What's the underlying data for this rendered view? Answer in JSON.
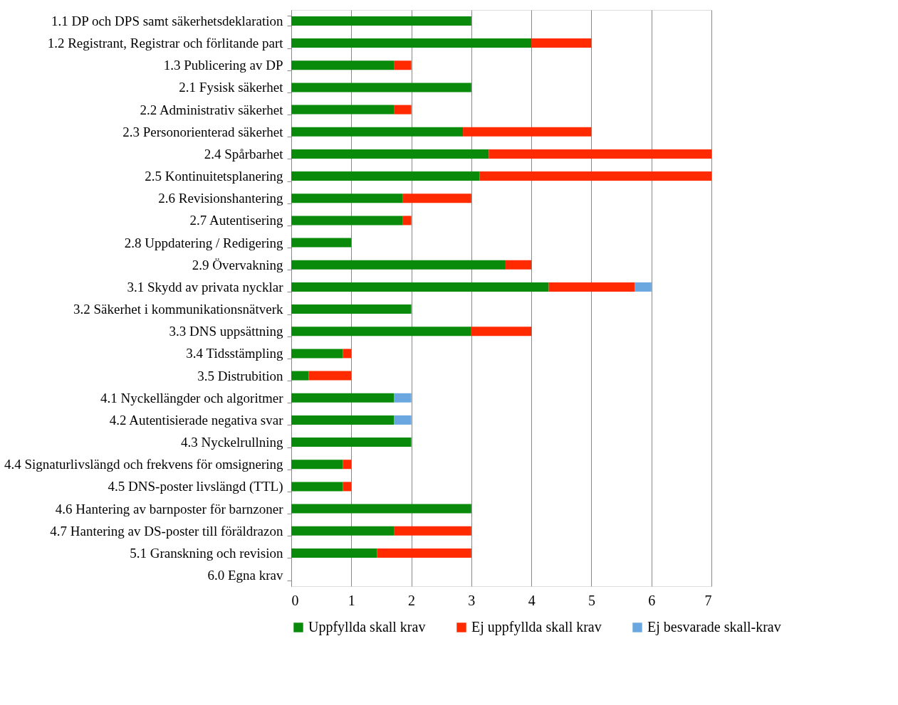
{
  "chart_data": {
    "type": "bar",
    "orientation": "horizontal",
    "stacked": true,
    "categories": [
      "1.1 DP och DPS samt säkerhetsdeklaration",
      "1.2 Registrant, Registrar och förlitande part",
      "1.3 Publicering av DP",
      "2.1 Fysisk säkerhet",
      "2.2 Administrativ säkerhet",
      "2.3 Personorienterad säkerhet",
      "2.4 Spårbarhet",
      "2.5 Kontinuitetsplanering",
      "2.6 Revisionshantering",
      "2.7 Autentisering",
      "2.8 Uppdatering / Redigering",
      "2.9 Övervakning",
      "3.1 Skydd av privata nycklar",
      "3.2 Säkerhet i kommunikationsnätverk",
      "3.3 DNS uppsättning",
      "3.4 Tidsstämpling",
      "3.5 Distrubition",
      "4.1 Nyckellängder och algoritmer",
      "4.2 Autentisierade negativa svar",
      "4.3 Nyckelrullning",
      "4.4 Signaturlivslängd och frekvens för omsignering",
      "4.5 DNS-poster livslängd (TTL)",
      "4.6 Hantering av barnposter för barnzoner",
      "4.7 Hantering av DS-poster till föräldrazon",
      "5.1 Granskning och revision",
      "6.0 Egna krav"
    ],
    "series": [
      {
        "name": "Uppfyllda skall krav",
        "color": "#0a8a0a",
        "values": [
          3,
          4,
          1.71,
          3,
          1.71,
          2.86,
          3.29,
          3.14,
          1.86,
          1.86,
          1,
          3.57,
          4.29,
          2,
          3,
          0.86,
          0.29,
          1.71,
          1.71,
          2,
          0.86,
          0.86,
          3,
          1.71,
          1.43,
          null
        ]
      },
      {
        "name": "Ej uppfyllda skall krav",
        "color": "#ff2a00",
        "values": [
          null,
          1,
          0.29,
          null,
          0.29,
          2.14,
          3.71,
          3.86,
          1.14,
          0.14,
          null,
          0.43,
          1.43,
          null,
          1,
          0.14,
          0.71,
          null,
          null,
          null,
          0.14,
          0.14,
          null,
          1.29,
          1.57,
          null
        ]
      },
      {
        "name": "Ej besvarade skall-krav",
        "color": "#6aa6e0",
        "values": [
          null,
          null,
          null,
          null,
          null,
          null,
          null,
          null,
          null,
          null,
          null,
          null,
          0.28,
          null,
          null,
          null,
          null,
          0.29,
          0.29,
          null,
          null,
          null,
          null,
          null,
          null,
          null
        ]
      }
    ],
    "xlim": [
      0,
      7
    ],
    "xticks": [
      0,
      1,
      2,
      3,
      4,
      5,
      6,
      7
    ],
    "grid": "x",
    "legend": "bottom"
  }
}
